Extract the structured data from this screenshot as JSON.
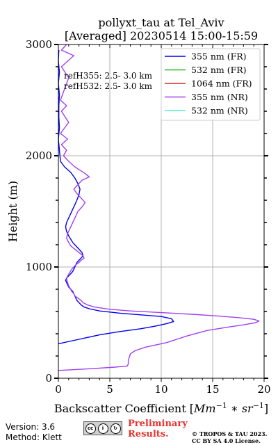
{
  "chart_data": {
    "type": "line",
    "title_line1": "pollyxt_tau at Tel_Aviv",
    "title_line2": "[Averaged] 20230514 15:00-15:59",
    "xlabel": "Backscatter Coefficient [Mm^-1 * sr^-1]",
    "ylabel": "Height (m)",
    "xlim": [
      0,
      20
    ],
    "ylim": [
      0,
      3000
    ],
    "xticks": [
      "0",
      "5",
      "10",
      "15",
      "20"
    ],
    "yticks": [
      "0",
      "1000",
      "2000",
      "3000"
    ],
    "grid": true,
    "legend_position": "top-right",
    "annotations": [
      "refH355:  2.5- 3.0 km",
      "refH532:  2.5- 3.0 km"
    ],
    "series": [
      {
        "name": "355 nm (FR)",
        "color": "#0000ee",
        "x": [
          0.0,
          2.0,
          4.0,
          6.0,
          8.0,
          9.5,
          10.5,
          11.2,
          11.0,
          10.0,
          8.0,
          6.0,
          4.0,
          3.0,
          2.5,
          2.2,
          2.0,
          1.8,
          1.7,
          1.6,
          1.5,
          1.4,
          1.2,
          1.0,
          0.9,
          0.8,
          0.7,
          0.8,
          1.0,
          1.2,
          1.4,
          1.5,
          1.6,
          1.7,
          1.8,
          2.0,
          2.2,
          2.4,
          2.3,
          2.0,
          1.7,
          1.4,
          1.2,
          1.0,
          0.8,
          0.7,
          0.8,
          1.0,
          1.2,
          1.4,
          1.6,
          1.8,
          2.0,
          2.1,
          1.9,
          1.6,
          1.2,
          0.6,
          0.2,
          0.1,
          0.0,
          0.1,
          0.05,
          0.05,
          0.1,
          0.0,
          0.1,
          0.0,
          0.05
        ],
        "y": [
          310,
          350,
          390,
          420,
          445,
          470,
          490,
          510,
          535,
          555,
          570,
          585,
          605,
          625,
          640,
          660,
          680,
          700,
          720,
          740,
          760,
          780,
          800,
          820,
          840,
          860,
          880,
          900,
          920,
          940,
          960,
          980,
          1000,
          1020,
          1040,
          1060,
          1080,
          1100,
          1130,
          1160,
          1190,
          1220,
          1250,
          1280,
          1320,
          1360,
          1400,
          1440,
          1480,
          1520,
          1560,
          1600,
          1650,
          1700,
          1750,
          1800,
          1850,
          1900,
          1950,
          2050,
          2150,
          2250,
          2350,
          2450,
          2550,
          2650,
          2750,
          2850,
          2950
        ]
      },
      {
        "name": "532 nm (FR)",
        "color": "#22bb22",
        "x": [],
        "y": []
      },
      {
        "name": "1064 nm (FR)",
        "color": "#dd2222",
        "x": [],
        "y": []
      },
      {
        "name": "355 nm (NR)",
        "color": "#a040f0",
        "x": [
          0.0,
          3.0,
          5.5,
          6.7,
          6.8,
          6.8,
          6.9,
          7.0,
          7.5,
          8.5,
          10.5,
          12.5,
          14.5,
          16.5,
          18.0,
          19.2,
          19.5,
          19.0,
          17.5,
          15.5,
          13.0,
          10.0,
          7.0,
          5.0,
          3.5,
          2.8,
          2.4,
          2.2,
          1.9,
          1.6,
          1.5,
          1.3,
          1.2,
          1.0,
          0.9,
          0.8,
          0.9,
          1.1,
          1.3,
          1.5,
          1.7,
          2.0,
          2.2,
          2.5,
          2.4,
          2.0,
          1.6,
          1.2,
          1.0,
          0.8,
          0.9,
          1.1,
          1.3,
          1.5,
          1.7,
          1.9,
          2.3,
          2.6,
          2.2,
          1.8,
          1.5,
          1.9,
          2.3,
          3.0,
          2.6,
          2.1,
          1.6,
          1.0,
          0.5,
          0.8,
          0.3,
          0.9,
          0.2,
          1.0,
          0.3,
          0.8,
          0.2,
          0.6,
          1.0,
          0.3,
          1.5,
          0.3,
          0.8
        ],
        "y": [
          70,
          85,
          100,
          110,
          130,
          160,
          190,
          220,
          250,
          280,
          320,
          380,
          430,
          460,
          480,
          500,
          515,
          530,
          545,
          560,
          575,
          590,
          605,
          620,
          640,
          660,
          680,
          700,
          720,
          740,
          760,
          780,
          800,
          830,
          860,
          890,
          920,
          950,
          980,
          1000,
          1020,
          1040,
          1060,
          1080,
          1100,
          1130,
          1160,
          1190,
          1220,
          1260,
          1300,
          1340,
          1380,
          1420,
          1460,
          1500,
          1540,
          1580,
          1620,
          1660,
          1700,
          1740,
          1780,
          1810,
          1840,
          1870,
          1900,
          1950,
          2000,
          2050,
          2100,
          2150,
          2200,
          2300,
          2400,
          2450,
          2500,
          2600,
          2700,
          2800,
          2900,
          2950,
          3000
        ]
      },
      {
        "name": "532 nm (NR)",
        "color": "#55eecc",
        "x": [],
        "y": []
      }
    ]
  },
  "footer": {
    "version": "Version: 3.6",
    "method": "Method: Klett",
    "cc_badge": "BY SA",
    "preliminary_line1": "Preliminary",
    "preliminary_line2": "Results.",
    "copyright_line1": "© TROPOS & TAU 2023.",
    "copyright_line2": "CC BY SA 4.0 License."
  }
}
